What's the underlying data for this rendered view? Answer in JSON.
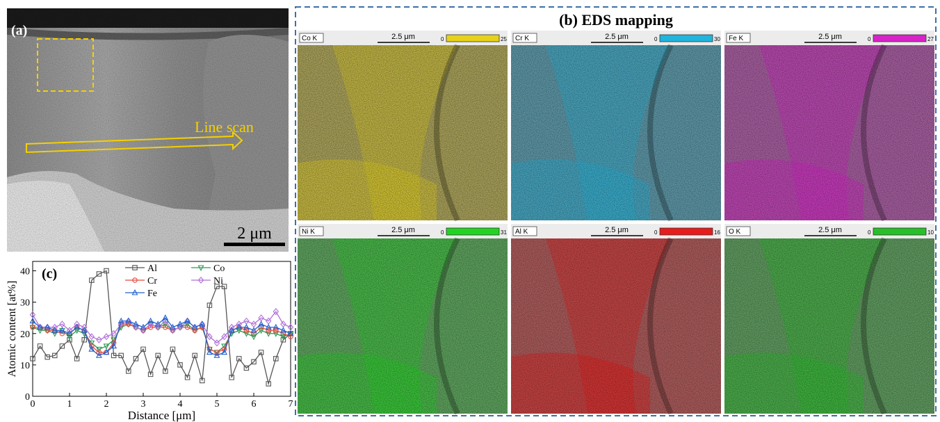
{
  "panel_a": {
    "label": "(a)",
    "annotation": "Line scan",
    "scale_bar": "2 μm"
  },
  "panel_b": {
    "title": "(b) EDS mapping",
    "maps": [
      {
        "element": "Co K",
        "scale": "2.5 μm",
        "min": 0,
        "max": 25,
        "color": "#e6d21c"
      },
      {
        "element": "Cr K",
        "scale": "2.5 μm",
        "min": 0,
        "max": 30,
        "color": "#22b4dc"
      },
      {
        "element": "Fe K",
        "scale": "2.5 μm",
        "min": 0,
        "max": 27,
        "color": "#d823c8"
      },
      {
        "element": "Ni K",
        "scale": "2.5 μm",
        "min": 0,
        "max": 31,
        "color": "#22d422"
      },
      {
        "element": "Al K",
        "scale": "2.5 μm",
        "min": 0,
        "max": 16,
        "color": "#e81c1c"
      },
      {
        "element": "O K",
        "scale": "2.5 μm",
        "min": 0,
        "max": 10,
        "color": "#28c028"
      }
    ]
  },
  "chart_data": {
    "type": "line",
    "panel_label": "(c)",
    "xlabel": "Distance [μm]",
    "ylabel": "Atomic content [at%]",
    "x": [
      0,
      0.2,
      0.4,
      0.6,
      0.8,
      1.0,
      1.2,
      1.4,
      1.6,
      1.8,
      2.0,
      2.2,
      2.4,
      2.6,
      2.8,
      3.0,
      3.2,
      3.4,
      3.6,
      3.8,
      4.0,
      4.2,
      4.4,
      4.6,
      4.8,
      5.0,
      5.2,
      5.4,
      5.6,
      5.8,
      6.0,
      6.2,
      6.4,
      6.6,
      6.8,
      7.0
    ],
    "xlim": [
      0,
      7
    ],
    "xticks": [
      0,
      1,
      2,
      3,
      4,
      5,
      6,
      7
    ],
    "ylim": [
      0,
      43
    ],
    "yticks": [
      0,
      10,
      20,
      30,
      40
    ],
    "series": [
      {
        "name": "Al",
        "color": "#555555",
        "marker": "square",
        "values": [
          12,
          16,
          12.5,
          13,
          16,
          18,
          12,
          18,
          37,
          39,
          40,
          13,
          13,
          8,
          12,
          15,
          7,
          13,
          8,
          15,
          10,
          6,
          13,
          5,
          29,
          35,
          35,
          6,
          12,
          9,
          11,
          14,
          4,
          12,
          18,
          20
        ]
      },
      {
        "name": "Co",
        "color": "#2a9a55",
        "marker": "triangle-down",
        "values": [
          22,
          21,
          21,
          20,
          21,
          19,
          21,
          20,
          17,
          15,
          16,
          18,
          22,
          23,
          22,
          21,
          23,
          22,
          23,
          21,
          22,
          23,
          21,
          22,
          15,
          14,
          16,
          20,
          21,
          20,
          19,
          21,
          20,
          20,
          19,
          20
        ]
      },
      {
        "name": "Cr",
        "color": "#e8483c",
        "marker": "circle",
        "values": [
          22,
          22,
          21,
          21,
          20,
          20,
          22,
          21,
          16,
          14,
          14,
          17,
          23,
          23,
          22,
          21,
          22,
          22,
          22,
          21,
          22,
          22,
          21,
          22,
          15,
          14,
          15,
          21,
          22,
          21,
          20,
          22,
          21,
          21,
          20,
          19
        ]
      },
      {
        "name": "Ni",
        "color": "#b070d8",
        "marker": "diamond",
        "values": [
          26,
          22,
          22,
          22,
          23,
          21,
          23,
          22,
          19,
          18,
          19,
          20,
          23,
          24,
          22,
          21,
          23,
          22,
          24,
          21,
          22,
          24,
          22,
          23,
          19,
          17,
          19,
          22,
          23,
          24,
          23,
          25,
          24,
          27,
          23,
          22
        ]
      },
      {
        "name": "Fe",
        "color": "#2060d0",
        "marker": "triangle",
        "values": [
          24,
          22,
          22,
          21,
          21,
          20,
          22,
          21,
          15,
          13,
          14,
          16,
          24,
          24,
          23,
          22,
          24,
          23,
          25,
          22,
          23,
          24,
          22,
          23,
          14,
          13,
          14,
          21,
          22,
          22,
          21,
          23,
          22,
          22,
          21,
          20
        ]
      }
    ]
  }
}
